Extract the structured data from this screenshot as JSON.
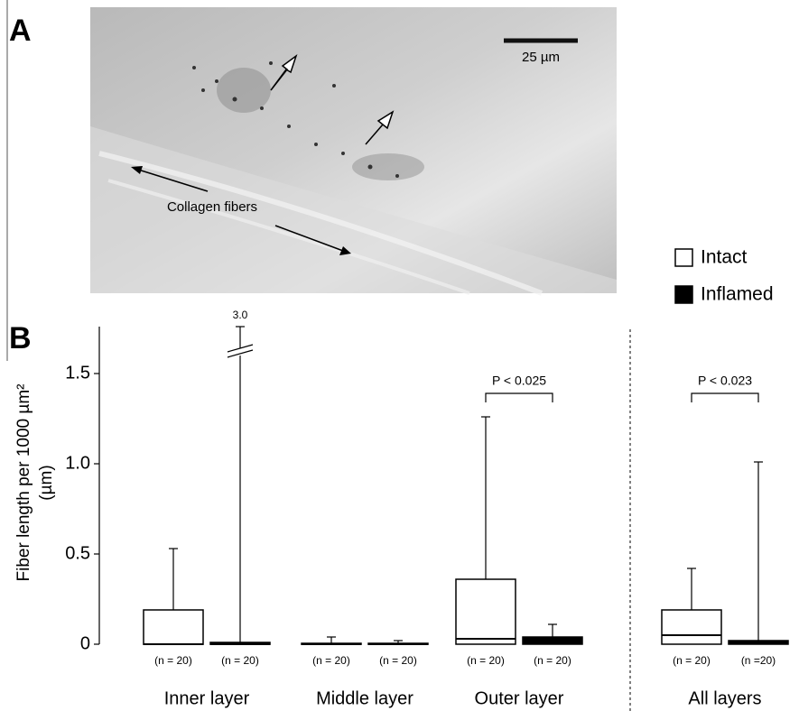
{
  "panel_a": {
    "label": "A",
    "scale_bar": "25 µm",
    "annotation": "Collagen fibers"
  },
  "chart_data": {
    "type": "box",
    "panel_label": "B",
    "ylabel": [
      "Fiber length per 1000 µm²",
      "(µm)"
    ],
    "ylim": [
      0,
      1.76
    ],
    "yticks": [
      0,
      0.5,
      {
        "value": 1,
        "label": "1.0"
      },
      1.5
    ],
    "categories": [
      "Inner layer",
      "Middle layer",
      "Outer layer",
      "All layers"
    ],
    "series": [
      {
        "name": "Intact",
        "color": "#ffffff",
        "q1": [
          0,
          0,
          0,
          0
        ],
        "median": [
          0,
          0,
          0.03,
          0.05
        ],
        "q3": [
          0.19,
          0.005,
          0.36,
          0.19
        ],
        "max": [
          0.53,
          0.04,
          1.26,
          0.42
        ],
        "n_labels": [
          "(n = 20)",
          "(n = 20)",
          "(n = 20)",
          "(n = 20)"
        ]
      },
      {
        "name": "Inflamed",
        "color": "#000000",
        "q1": [
          0,
          0,
          0,
          0
        ],
        "median": [
          0,
          0,
          0.02,
          0.01
        ],
        "q3": [
          0.01,
          0.005,
          0.04,
          0.02
        ],
        "max": [
          3,
          0.02,
          0.11,
          1.01
        ],
        "max_labels": [
          "3.0",
          null,
          null,
          null
        ],
        "n_labels": [
          "(n = 20)",
          "(n = 20)",
          "(n = 20)",
          "(n =20)"
        ]
      }
    ],
    "comparisons": [
      {
        "category": 2,
        "label": "P < 0.025"
      },
      {
        "category": 3,
        "label": "P < 0.023"
      }
    ]
  }
}
